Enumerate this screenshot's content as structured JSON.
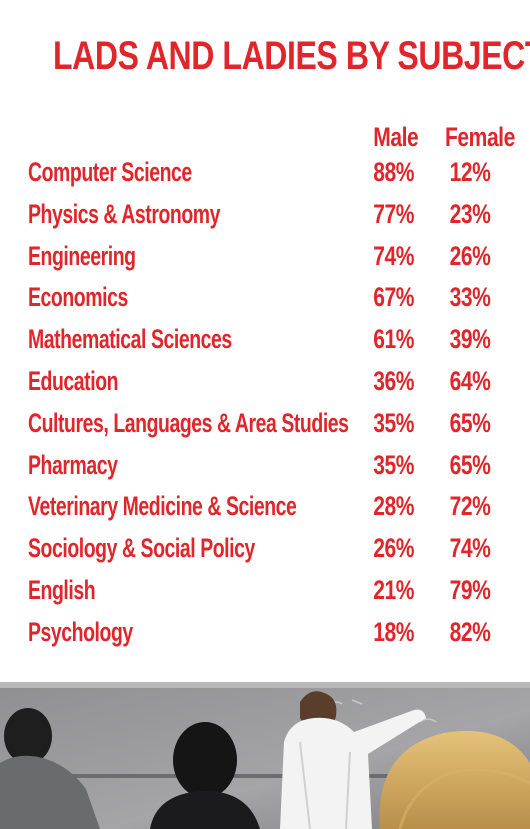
{
  "chart_data": {
    "type": "table",
    "title": "LADS AND LADIES BY SUBJECT",
    "columns": [
      "Male",
      "Female"
    ],
    "rows": [
      {
        "subject": "Computer Science",
        "male": "88%",
        "female": "12%"
      },
      {
        "subject": "Physics & Astronomy",
        "male": "77%",
        "female": "23%"
      },
      {
        "subject": "Engineering",
        "male": "74%",
        "female": "26%"
      },
      {
        "subject": "Economics",
        "male": "67%",
        "female": "33%"
      },
      {
        "subject": "Mathematical Sciences",
        "male": "61%",
        "female": "39%"
      },
      {
        "subject": "Education",
        "male": "36%",
        "female": "64%"
      },
      {
        "subject": "Cultures, Languages & Area Studies",
        "male": "35%",
        "female": "65%"
      },
      {
        "subject": "Pharmacy",
        "male": "35%",
        "female": "65%"
      },
      {
        "subject": "Veterinary Medicine & Science",
        "male": "28%",
        "female": "72%"
      },
      {
        "subject": "Sociology & Social Policy",
        "male": "26%",
        "female": "74%"
      },
      {
        "subject": "English",
        "male": "21%",
        "female": "79%"
      },
      {
        "subject": "Psychology",
        "male": "18%",
        "female": "82%"
      }
    ]
  },
  "colors": {
    "accent": "#e0262b",
    "background": "#ffffff"
  }
}
